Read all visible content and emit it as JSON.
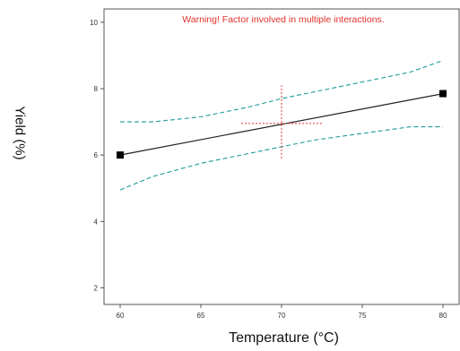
{
  "chart_data": {
    "type": "line",
    "xlabel": "Temperature (°C)",
    "ylabel": "Yield (%)",
    "annotation": "Warning! Factor involved in multiple interactions.",
    "xlim": [
      59,
      81
    ],
    "ylim": [
      1.5,
      10.4
    ],
    "xticks": [
      60,
      65,
      70,
      75,
      80
    ],
    "yticks": [
      2,
      4,
      6,
      8,
      10
    ],
    "grid": false,
    "colors": {
      "fit": "#222222",
      "ci": "#1f9b9b",
      "crosshair": "#e0312b",
      "annotation": "#e0312b",
      "axis": "#555555"
    },
    "series": [
      {
        "role": "fit",
        "style": "solid",
        "x": [
          60,
          80
        ],
        "y": [
          6.0,
          7.85
        ],
        "markers": true
      },
      {
        "role": "upper-ci",
        "style": "dashed",
        "x": [
          60,
          62,
          65,
          68,
          70,
          72,
          75,
          78,
          80
        ],
        "y": [
          7.0,
          7.0,
          7.15,
          7.45,
          7.7,
          7.9,
          8.2,
          8.5,
          8.85
        ]
      },
      {
        "role": "lower-ci",
        "style": "dashed",
        "x": [
          60,
          62,
          65,
          68,
          70,
          72,
          75,
          78,
          80
        ],
        "y": [
          4.95,
          5.35,
          5.75,
          6.05,
          6.25,
          6.45,
          6.65,
          6.85,
          6.85
        ]
      }
    ],
    "crosshair": {
      "x": 70,
      "y": 6.95,
      "xspan": [
        67.5,
        72.5
      ],
      "yspan": [
        5.9,
        8.1
      ]
    }
  }
}
